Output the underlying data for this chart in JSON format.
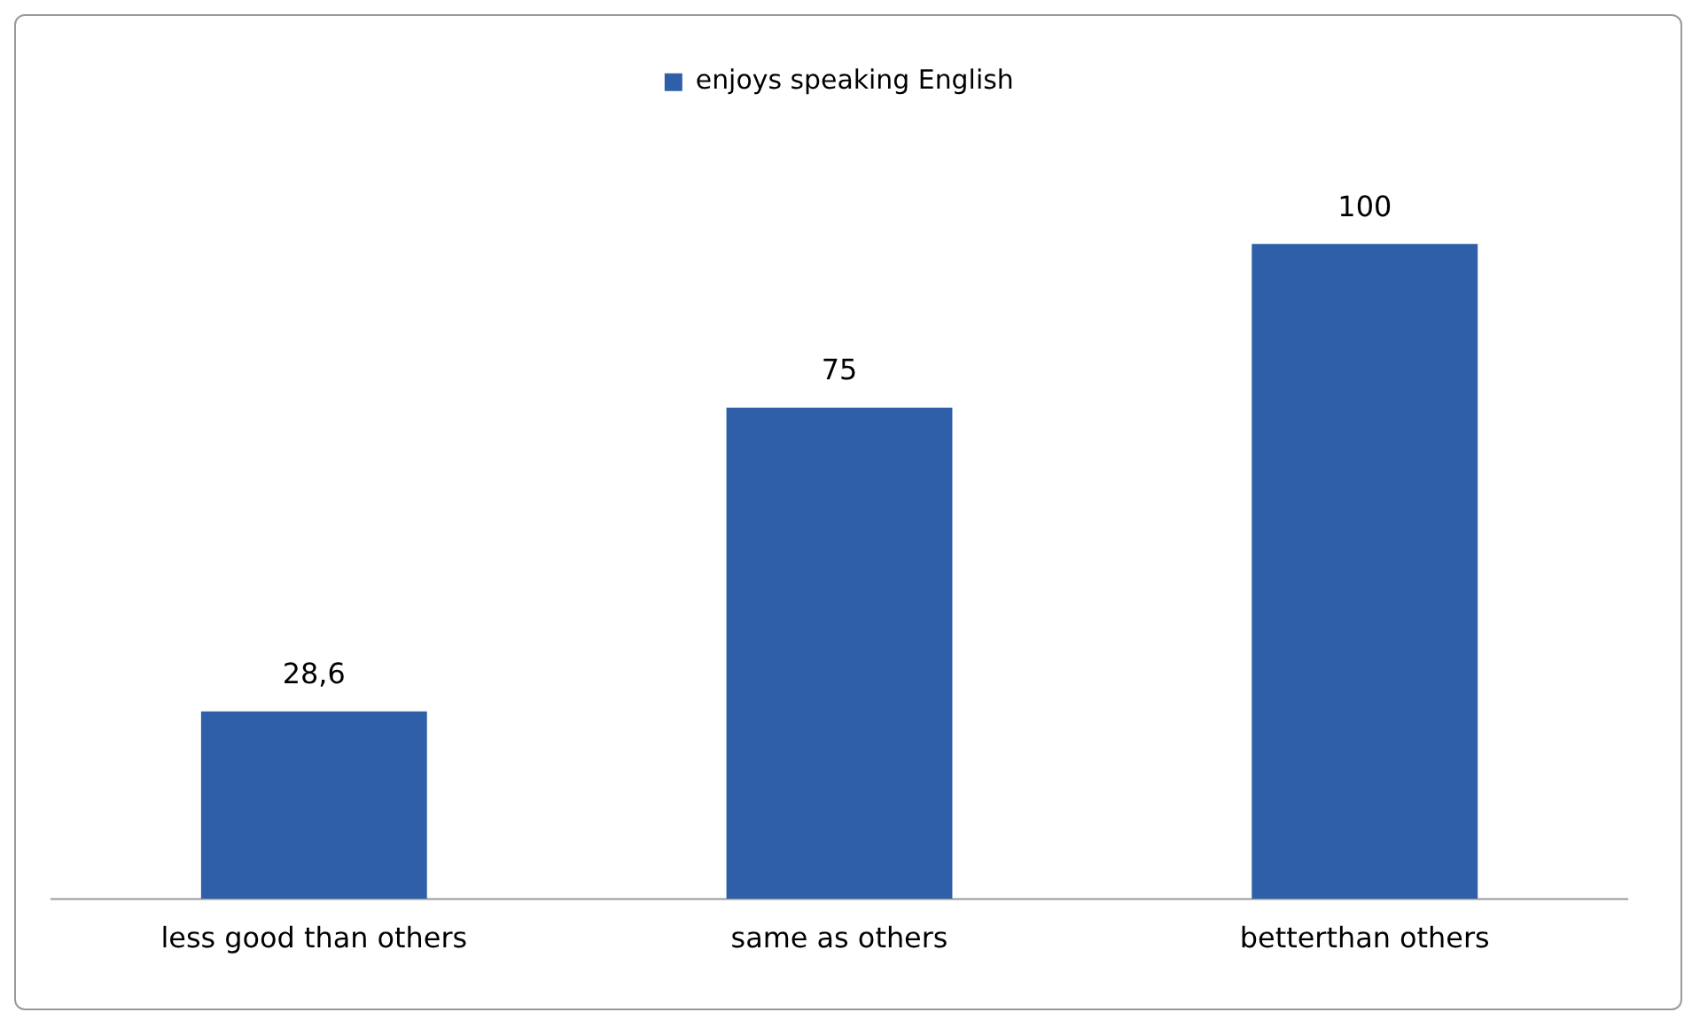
{
  "chart_data": {
    "type": "bar",
    "categories": [
      "less good than others",
      "same as others",
      "betterthan others"
    ],
    "series": [
      {
        "name": "enjoys speaking English",
        "color": "#2f5fa8",
        "values": [
          28.6,
          75,
          100
        ],
        "value_labels": [
          "28,6",
          "75",
          "100"
        ]
      }
    ],
    "legend": "top",
    "grid": false,
    "tick_labels": "x"
  }
}
